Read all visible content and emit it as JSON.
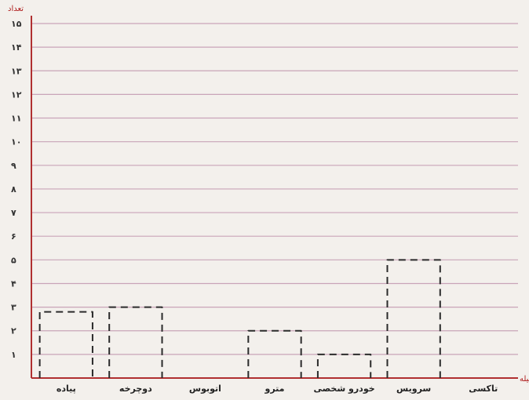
{
  "chart_data": {
    "type": "bar",
    "title": "",
    "xlabel": "وسیله",
    "ylabel": "تعداد",
    "categories": [
      "تاکسی",
      "سرویس",
      "خودرو شخصی",
      "مترو",
      "اتوبوس",
      "دوچرخه",
      "پیاده"
    ],
    "values": [
      0,
      5,
      1,
      2,
      0,
      3,
      2.8
    ],
    "ylim": [
      0,
      15
    ],
    "yticks": [
      {
        "v": 1,
        "label": "۱"
      },
      {
        "v": 2,
        "label": "۲"
      },
      {
        "v": 3,
        "label": "۳"
      },
      {
        "v": 4,
        "label": "۴"
      },
      {
        "v": 5,
        "label": "۵"
      },
      {
        "v": 6,
        "label": "۶"
      },
      {
        "v": 7,
        "label": "۷"
      },
      {
        "v": 8,
        "label": "۸"
      },
      {
        "v": 9,
        "label": "۹"
      },
      {
        "v": 10,
        "label": "۱۰"
      },
      {
        "v": 11,
        "label": "۱۱"
      },
      {
        "v": 12,
        "label": "۱۲"
      },
      {
        "v": 13,
        "label": "۱۳"
      },
      {
        "v": 14,
        "label": "۱۴"
      },
      {
        "v": 15,
        "label": "۱۵"
      }
    ],
    "grid": true,
    "bar_style": "dashed outline (hand-drawn)",
    "line_color": "#2b2b2b",
    "grid_color": "#c9a4b8"
  }
}
